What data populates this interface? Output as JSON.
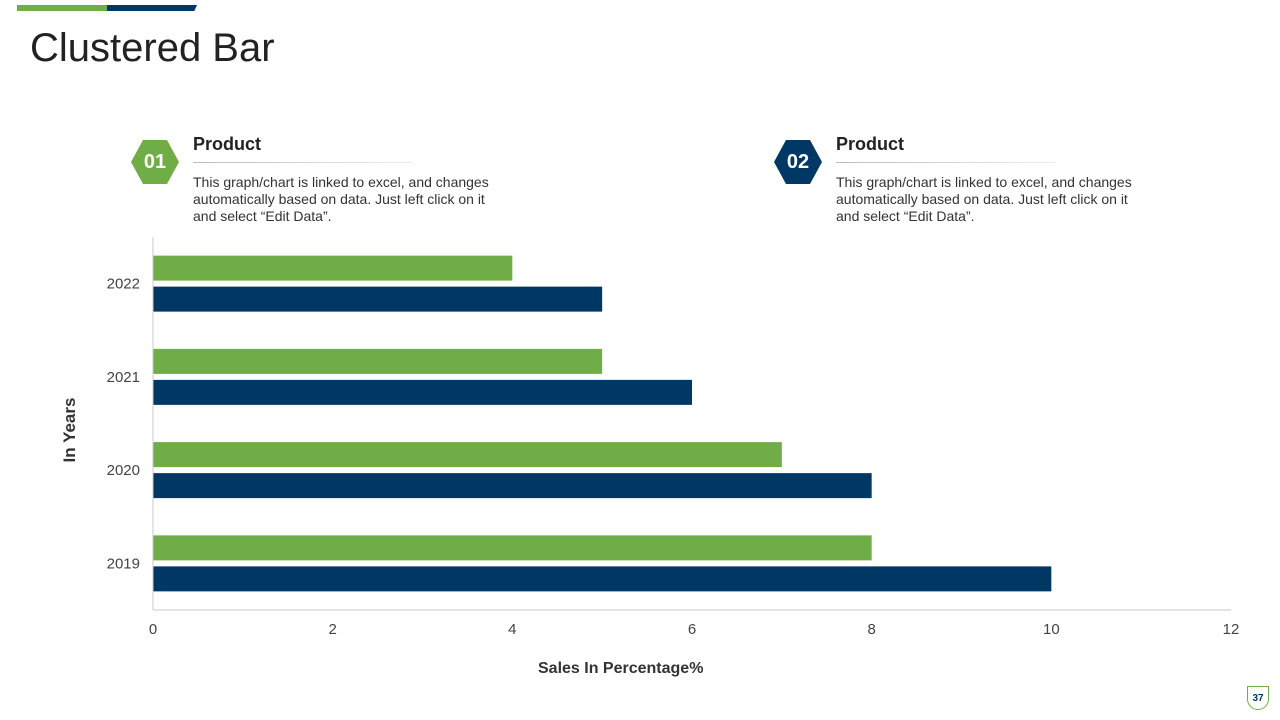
{
  "title": "Clustered Bar",
  "legend": [
    {
      "number": "01",
      "heading": "Product",
      "description": "This graph/chart is linked to excel, and changes automatically based on data. Just left click on it and select “Edit Data”.",
      "color": "#70ad47"
    },
    {
      "number": "02",
      "heading": "Product",
      "description": "This graph/chart is linked to excel, and changes automatically based on data. Just left click on it and select “Edit Data”.",
      "color": "#003865"
    }
  ],
  "page_number": "37",
  "chart_data": {
    "type": "bar",
    "orientation": "horizontal",
    "categories": [
      "2019",
      "2020",
      "2021",
      "2022"
    ],
    "series": [
      {
        "color": "#70ad47",
        "values": [
          8,
          7,
          5,
          4
        ]
      },
      {
        "color": "#003865",
        "values": [
          10,
          8,
          6,
          5
        ]
      }
    ],
    "xlabel": "Sales In Percentage%",
    "ylabel": "In Years",
    "xlim": [
      0,
      12
    ],
    "xticks": [
      "0",
      "2",
      "4",
      "6",
      "8",
      "10",
      "12"
    ],
    "grid": false
  }
}
